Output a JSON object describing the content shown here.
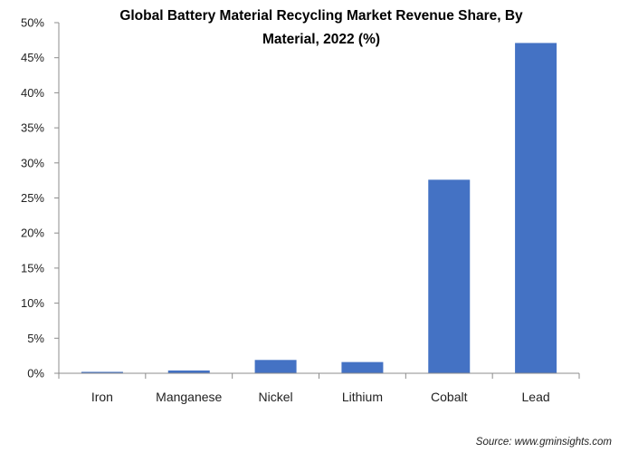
{
  "chart_data": {
    "type": "bar",
    "title_lines": [
      "Global Battery Material Recycling Market Revenue Share, By",
      "Material, 2022 (%)"
    ],
    "categories": [
      "Iron",
      "Manganese",
      "Nickel",
      "Lithium",
      "Cobalt",
      "Lead"
    ],
    "values": [
      0.2,
      0.4,
      1.9,
      1.6,
      27.6,
      47.1
    ],
    "ylim": [
      0,
      50
    ],
    "yticks": [
      0,
      5,
      10,
      15,
      20,
      25,
      30,
      35,
      40,
      45,
      50
    ],
    "ytick_labels": [
      "0%",
      "5%",
      "10%",
      "15%",
      "20%",
      "25%",
      "30%",
      "35%",
      "40%",
      "45%",
      "50%"
    ],
    "xlabel": "",
    "ylabel": "",
    "grid": false,
    "bar_color": "#4472c4",
    "source": "Source: www.gminsights.com"
  }
}
